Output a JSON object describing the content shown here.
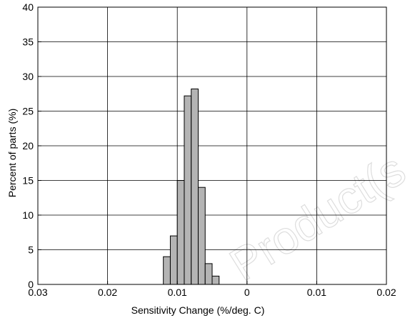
{
  "chart_data": {
    "type": "bar",
    "subtype": "histogram",
    "xlabel": "Sensitivity Change (%/deg. C)",
    "ylabel": "Percent of parts (%)",
    "x_tick_labels": [
      "0.03",
      "0.02",
      "0.01",
      "0",
      "0.01",
      "0.02"
    ],
    "x_tick_values": [
      -0.03,
      -0.02,
      -0.01,
      0,
      0.01,
      0.02
    ],
    "xlim": [
      -0.03,
      0.02
    ],
    "y_tick_labels": [
      "0",
      "5",
      "10",
      "15",
      "20",
      "25",
      "30",
      "35",
      "40"
    ],
    "ylim": [
      0,
      40
    ],
    "grid": true,
    "bin_width": 0.001,
    "bins": [
      {
        "x0": -0.012,
        "x1": -0.011,
        "value": 4
      },
      {
        "x0": -0.011,
        "x1": -0.01,
        "value": 7
      },
      {
        "x0": -0.01,
        "x1": -0.009,
        "value": 15
      },
      {
        "x0": -0.009,
        "x1": -0.008,
        "value": 27.2
      },
      {
        "x0": -0.008,
        "x1": -0.007,
        "value": 28.2
      },
      {
        "x0": -0.007,
        "x1": -0.006,
        "value": 14
      },
      {
        "x0": -0.006,
        "x1": -0.005,
        "value": 3
      },
      {
        "x0": -0.005,
        "x1": -0.004,
        "value": 1.2
      }
    ],
    "bar_color": "#b4b4b4",
    "watermark": "Product(s"
  }
}
